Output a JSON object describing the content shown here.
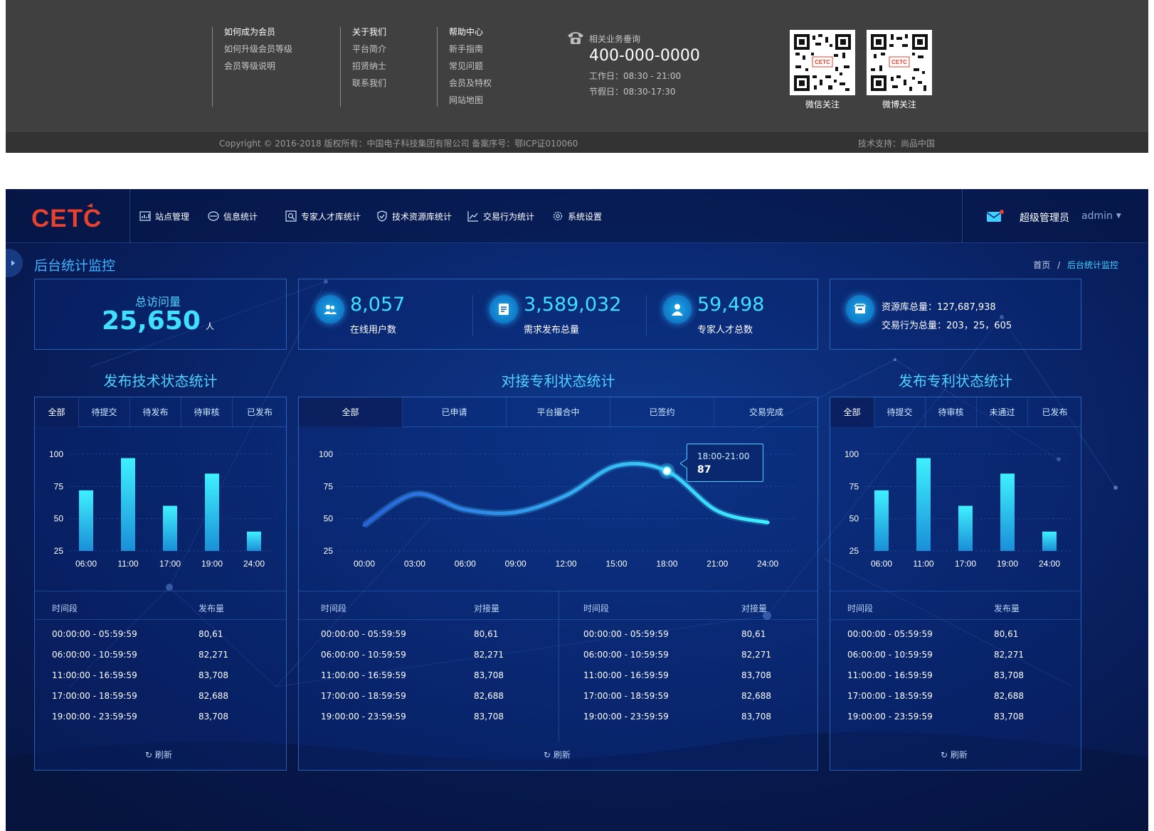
{
  "footer": {
    "columns": [
      {
        "title": "如何成为会员",
        "items": [
          "如何升级会员等级",
          "会员等级说明"
        ]
      },
      {
        "title": "关于我们",
        "items": [
          "平台简介",
          "招贤纳士",
          "联系我们"
        ]
      },
      {
        "title": "帮助中心",
        "items": [
          "新手指南",
          "常见问题",
          "会员及特权",
          "网站地图"
        ]
      }
    ],
    "contact": {
      "label": "相关业务垂询",
      "phone": "400-000-0000",
      "workday": "工作日：08:30 - 21:00",
      "holiday": "节假日：08:30-17:30"
    },
    "qr": [
      {
        "label": "微信关注"
      },
      {
        "label": "微博关注"
      }
    ],
    "copyright": "Copyright © 2016-2018   版权所有：中国电子科技集团有限公司   备案序号：鄂ICP证010060",
    "tech_support": "技术支持：尚品中国"
  },
  "header": {
    "logo": "CETC",
    "nav": [
      {
        "label": "站点管理",
        "icon": "site-icon"
      },
      {
        "label": "信息统计",
        "icon": "info-icon"
      },
      {
        "label": "专家人才库统计",
        "icon": "expert-icon"
      },
      {
        "label": "技术资源库统计",
        "icon": "shield-icon"
      },
      {
        "label": "交易行为统计",
        "icon": "trend-icon"
      },
      {
        "label": "系统设置",
        "icon": "gear-icon"
      }
    ],
    "user_role": "超级管理员",
    "user_name": "admin"
  },
  "page": {
    "title": "后台统计监控",
    "breadcrumb": {
      "home": "首页",
      "sep": "/",
      "current": "后台统计监控"
    }
  },
  "stats": {
    "visits": {
      "label": "总访问量",
      "value": "25,650",
      "unit": "人"
    },
    "online": {
      "value": "8,057",
      "label": "在线用户数"
    },
    "demand": {
      "value": "3,589,032",
      "label": "需求发布总量"
    },
    "experts": {
      "value": "59,498",
      "label": "专家人才总数"
    },
    "resources": {
      "label": "资源库总量：127,687,938"
    },
    "transactions": {
      "label": "交易行为总量：203，25，605"
    }
  },
  "sections": {
    "left": {
      "title": "发布技术状态统计",
      "tabs": [
        "全部",
        "待提交",
        "待发布",
        "待审核",
        "已发布"
      ],
      "active_tab": 0,
      "table_headers": [
        "时间段",
        "发布量"
      ],
      "rows": [
        [
          "00:00:00 - 05:59:59",
          "80,61"
        ],
        [
          "06:00:00 - 10:59:59",
          "82,271"
        ],
        [
          "11:00:00 - 16:59:59",
          "83,708"
        ],
        [
          "17:00:00 - 18:59:59",
          "82,688"
        ],
        [
          "19:00:00 - 23:59:59",
          "83,708"
        ]
      ],
      "refresh": "刷新"
    },
    "middle": {
      "title": "对接专利状态统计",
      "tabs": [
        "全部",
        "已申请",
        "平台撮合中",
        "已签约",
        "交易完成"
      ],
      "active_tab": 0,
      "table_headers": [
        "时间段",
        "对接量"
      ],
      "rows": [
        [
          "00:00:00 - 05:59:59",
          "80,61"
        ],
        [
          "06:00:00 - 10:59:59",
          "82,271"
        ],
        [
          "11:00:00 - 16:59:59",
          "83,708"
        ],
        [
          "17:00:00 - 18:59:59",
          "82,688"
        ],
        [
          "19:00:00 - 23:59:59",
          "83,708"
        ]
      ],
      "tooltip": {
        "label": "18:00-21:00",
        "value": "87"
      },
      "refresh": "刷新"
    },
    "right": {
      "title": "发布专利状态统计",
      "tabs": [
        "全部",
        "待提交",
        "待审核",
        "未通过",
        "已发布"
      ],
      "active_tab": 0,
      "table_headers": [
        "时间段",
        "发布量"
      ],
      "rows": [
        [
          "00:00:00 - 05:59:59",
          "80,61"
        ],
        [
          "06:00:00 - 10:59:59",
          "82,271"
        ],
        [
          "11:00:00 - 16:59:59",
          "83,708"
        ],
        [
          "17:00:00 - 18:59:59",
          "82,688"
        ],
        [
          "19:00:00 - 23:59:59",
          "83,708"
        ]
      ],
      "refresh": "刷新"
    }
  },
  "chart_data": [
    {
      "type": "bar",
      "categories": [
        "06:00",
        "11:00",
        "17:00",
        "19:00",
        "24:00"
      ],
      "values": [
        72,
        97,
        60,
        85,
        40
      ],
      "y_ticks": [
        100,
        75,
        50,
        25
      ],
      "ylim": [
        25,
        100
      ],
      "grid": true
    },
    {
      "type": "line",
      "x": [
        "00:00",
        "03:00",
        "06:00",
        "09:00",
        "12:00",
        "15:00",
        "18:00",
        "21:00",
        "24:00"
      ],
      "values": [
        45,
        69,
        57,
        55,
        68,
        91,
        87,
        56,
        47
      ],
      "y_ticks": [
        100,
        75,
        50,
        25
      ],
      "ylim": [
        25,
        100
      ],
      "grid": true
    },
    {
      "type": "bar",
      "categories": [
        "06:00",
        "11:00",
        "17:00",
        "19:00",
        "24:00"
      ],
      "values": [
        72,
        97,
        60,
        85,
        40
      ],
      "y_ticks": [
        100,
        75,
        50,
        25
      ],
      "ylim": [
        25,
        100
      ],
      "grid": true
    }
  ],
  "colors": {
    "accent": "#3fe0ff",
    "title_blue": "#4fd2ff",
    "footer_bg": "#404040",
    "dashboard_bg": "#0b2a74",
    "logo_red": "#e8422e"
  }
}
